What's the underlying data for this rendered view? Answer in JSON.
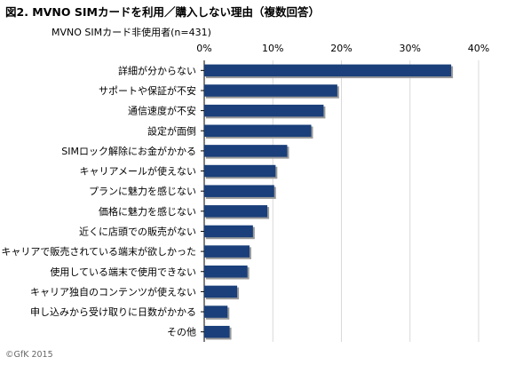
{
  "title": "図2. MVNO SIMカードを利用／購入しない理由（複数回答）",
  "copyright": "©GfK 2015",
  "colors": {
    "bar": "#1a3f7a",
    "bar_shadow": "#9a9a9a",
    "grid": "#d9d9d9",
    "axis": "#000000"
  },
  "chart_data": {
    "type": "bar",
    "orientation": "horizontal",
    "subtitle": "MVNO SIMカード非使用者(n=431)",
    "categories": [
      "詳細が分からない",
      "サポートや保証が不安",
      "通信速度が不安",
      "設定が面倒",
      "SIMロック解除にお金がかかる",
      "キャリアメールが使えない",
      "プランに魅力を感じない",
      "価格に魅力を感じない",
      "近くに店頭での販売がない",
      "キャリアで販売されている端末が欲しかった",
      "使用している端末で使用できない",
      "キャリア独自のコンテンツが使えない",
      "申し込みから受け取りに日数がかかる",
      "その他"
    ],
    "values": [
      36,
      19.4,
      17.4,
      15.6,
      12.1,
      10.4,
      10.2,
      9.2,
      7.1,
      6.6,
      6.3,
      4.8,
      3.4,
      3.7
    ],
    "xlim": [
      0,
      40
    ],
    "xticks": [
      0,
      10,
      20,
      30,
      40
    ],
    "xtick_labels": [
      "0%",
      "10%",
      "20%",
      "30%",
      "40%"
    ],
    "grid": true,
    "gridlines": "vertical",
    "legend": "none"
  }
}
